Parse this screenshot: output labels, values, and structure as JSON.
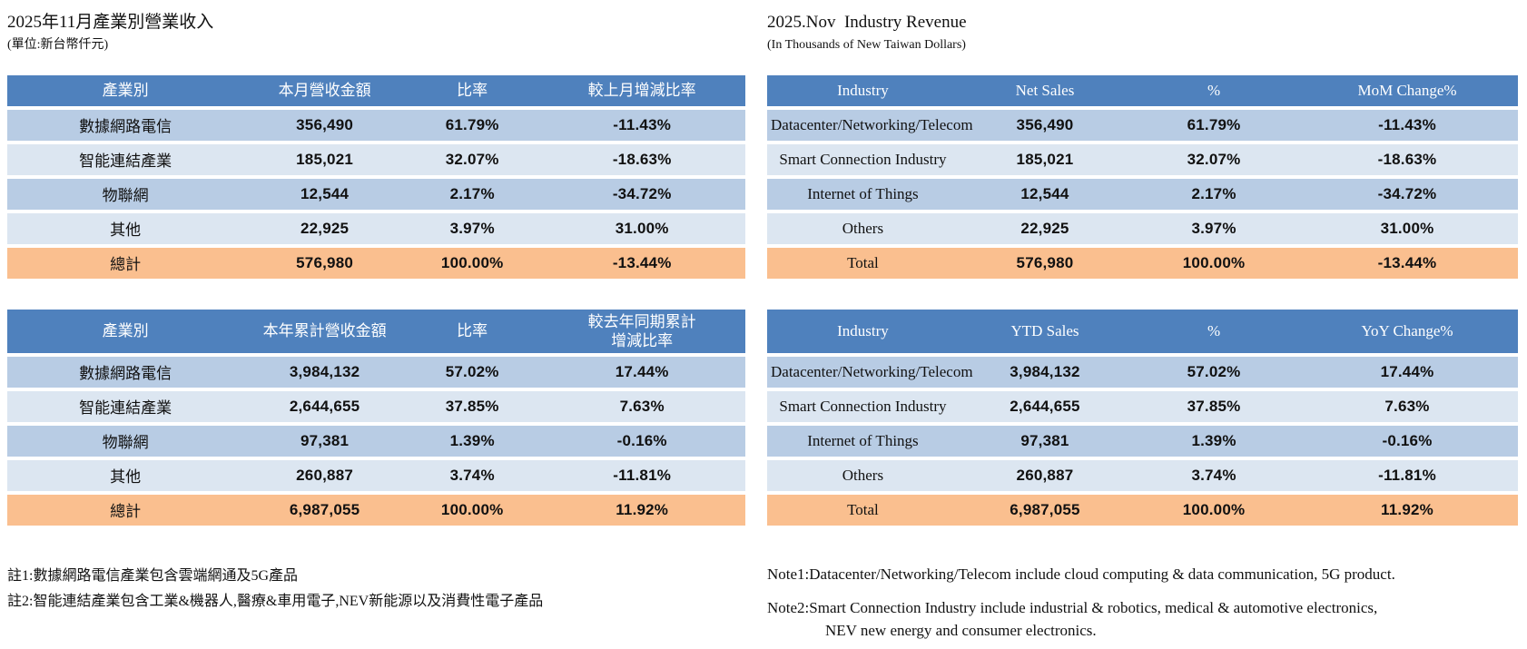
{
  "colors": {
    "header_bg": "#4f81bd",
    "row_blue": "#b8cce4",
    "row_light": "#dce6f1",
    "total_bg": "#fabf8f"
  },
  "left": {
    "title": "2025年11月產業別營業收入",
    "subtitle": "(單位:新台幣仟元)",
    "monthly": {
      "headers": [
        "產業別",
        "本月營收金額",
        "比率",
        "較上月增減比率"
      ],
      "rows": [
        [
          "數據網路電信",
          "356,490",
          "61.79%",
          "-11.43%"
        ],
        [
          "智能連結產業",
          "185,021",
          "32.07%",
          "-18.63%"
        ],
        [
          "物聯網",
          "12,544",
          "2.17%",
          "-34.72%"
        ],
        [
          "其他",
          "22,925",
          "3.97%",
          "31.00%"
        ]
      ],
      "total": [
        "總計",
        "576,980",
        "100.00%",
        "-13.44%"
      ]
    },
    "ytd": {
      "headers": [
        "產業別",
        "本年累計營收金額",
        "比率",
        "較去年同期累計\n增減比率"
      ],
      "rows": [
        [
          "數據網路電信",
          "3,984,132",
          "57.02%",
          "17.44%"
        ],
        [
          "智能連結產業",
          "2,644,655",
          "37.85%",
          "7.63%"
        ],
        [
          "物聯網",
          "97,381",
          "1.39%",
          "-0.16%"
        ],
        [
          "其他",
          "260,887",
          "3.74%",
          "-11.81%"
        ]
      ],
      "total": [
        "總計",
        "6,987,055",
        "100.00%",
        "11.92%"
      ]
    },
    "notes": [
      "註1:數據網路電信產業包含雲端網通及5G產品",
      "註2:智能連結產業包含工業&機器人,醫療&車用電子,NEV新能源以及消費性電子產品"
    ]
  },
  "right": {
    "title": "2025.Nov  Industry Revenue",
    "subtitle": "(In Thousands of New Taiwan Dollars)",
    "monthly": {
      "headers": [
        "Industry",
        "Net Sales",
        "%",
        "MoM Change%"
      ],
      "rows": [
        [
          "Datacenter/Networking/Telecom",
          "356,490",
          "61.79%",
          "-11.43%"
        ],
        [
          "Smart Connection Industry",
          "185,021",
          "32.07%",
          "-18.63%"
        ],
        [
          "Internet of Things",
          "12,544",
          "2.17%",
          "-34.72%"
        ],
        [
          "Others",
          "22,925",
          "3.97%",
          "31.00%"
        ]
      ],
      "total": [
        "Total",
        "576,980",
        "100.00%",
        "-13.44%"
      ]
    },
    "ytd": {
      "headers": [
        "Industry",
        "YTD Sales",
        "%",
        "YoY Change%"
      ],
      "rows": [
        [
          "Datacenter/Networking/Telecom",
          "3,984,132",
          "57.02%",
          "17.44%"
        ],
        [
          "Smart Connection Industry",
          "2,644,655",
          "37.85%",
          "7.63%"
        ],
        [
          "Internet of Things",
          "97,381",
          "1.39%",
          "-0.16%"
        ],
        [
          "Others",
          "260,887",
          "3.74%",
          "-11.81%"
        ]
      ],
      "total": [
        "Total",
        "6,987,055",
        "100.00%",
        "11.92%"
      ]
    },
    "notes": [
      "Note1:Datacenter/Networking/Telecom include cloud computing & data communication, 5G product.",
      "Note2:Smart Connection Industry include industrial & robotics, medical & automotive electronics,\nNEV new energy and consumer electronics."
    ]
  }
}
